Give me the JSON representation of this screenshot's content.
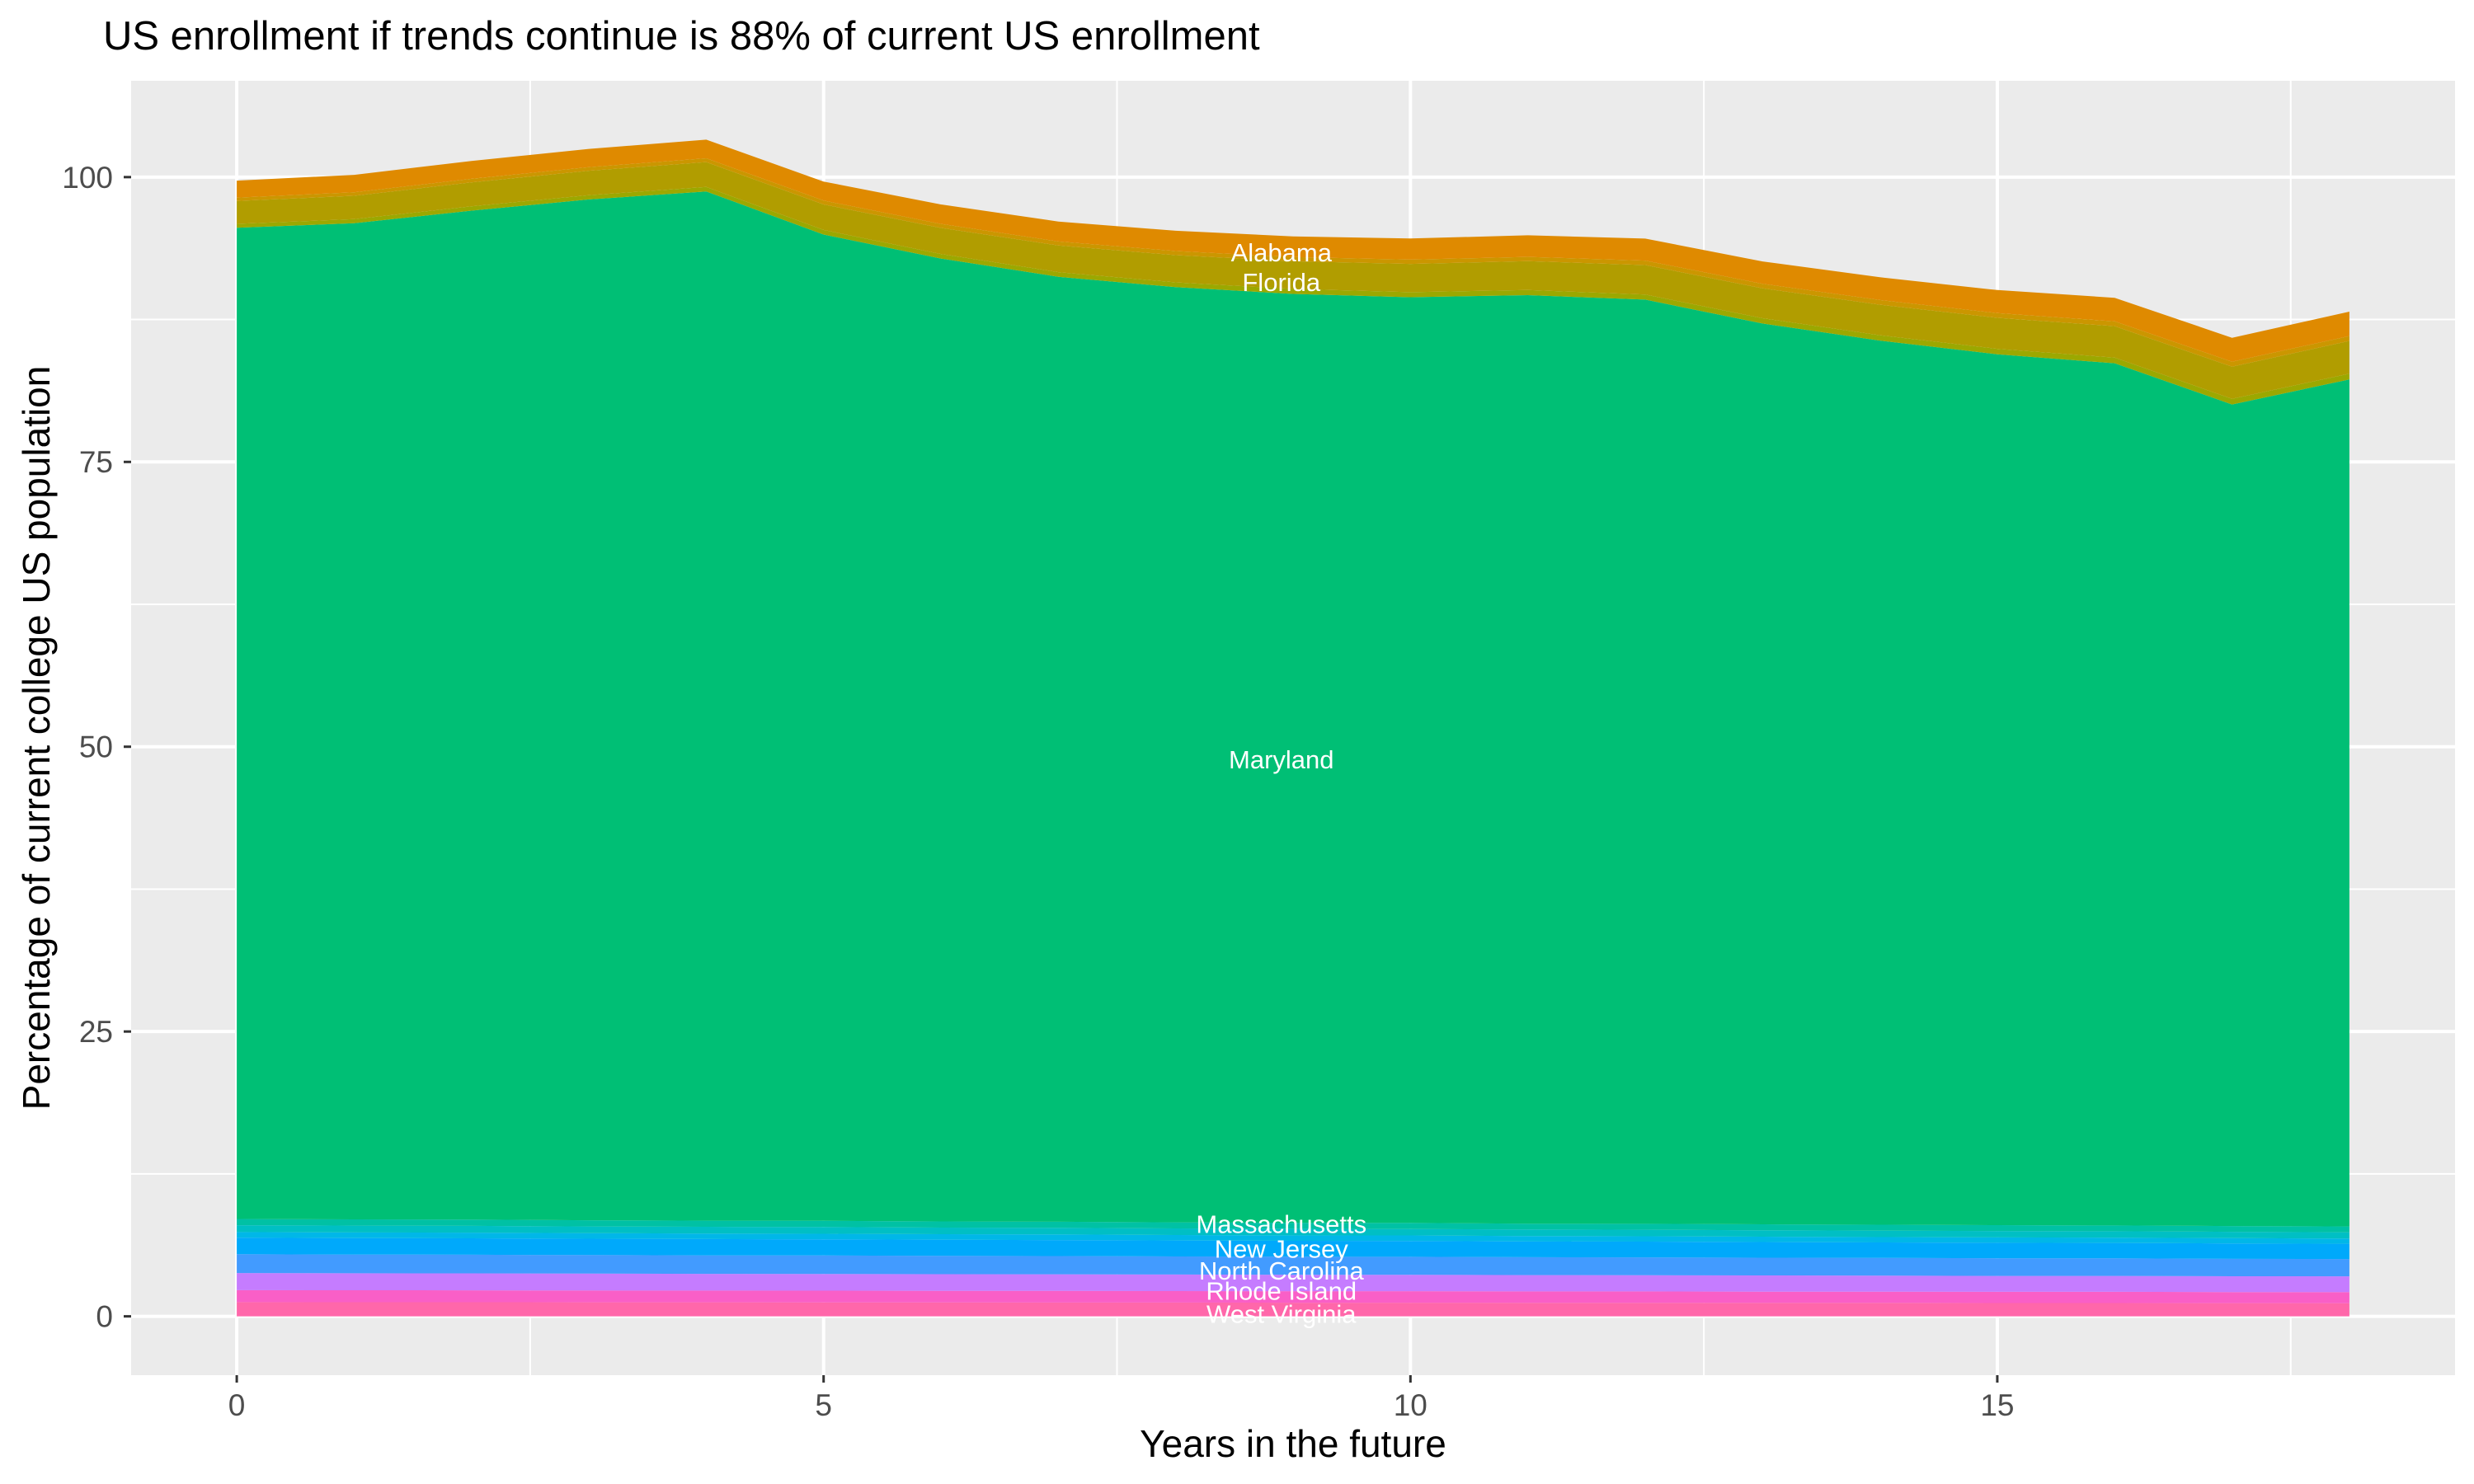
{
  "title": "US enrollment if trends continue is 88% of current US enrollment",
  "axes": {
    "x": {
      "title": "Years in the future",
      "ticks": [
        0,
        5,
        10,
        15
      ]
    },
    "y": {
      "title": "Percentage of current college US population",
      "ticks": [
        0,
        25,
        50,
        75,
        100
      ]
    }
  },
  "style": {
    "panel_background": "#EBEBEB",
    "gridline_color": "#FFFFFF",
    "tick_mark_color": "#333333",
    "tick_label_color": "#4D4D4D",
    "state_label_color": "#FFFFFF"
  },
  "chart_data": {
    "type": "area",
    "stacked": true,
    "title": "US enrollment if trends continue is 88% of current US enrollment",
    "xlabel": "Years in the future",
    "ylabel": "Percentage of current college US population",
    "legend": "none",
    "grid": true,
    "x_range_data": [
      0,
      18
    ],
    "y_tick_range": [
      0,
      100
    ],
    "x": [
      0,
      1,
      2,
      3,
      4,
      5,
      6,
      7,
      8,
      9,
      10,
      11,
      12,
      13,
      14,
      15,
      16,
      17,
      18
    ],
    "label_x": 8.9,
    "series": [
      {
        "name": "West Virginia",
        "label": "West Virginia",
        "label_y": 0.2,
        "color": "#FF67AA",
        "values": [
          1.25,
          1.24,
          1.24,
          1.23,
          1.23,
          1.22,
          1.22,
          1.21,
          1.21,
          1.2,
          1.2,
          1.19,
          1.19,
          1.18,
          1.18,
          1.17,
          1.17,
          1.16,
          1.15
        ]
      },
      {
        "name": "unlabeled-band-magenta",
        "label": null,
        "label_y": null,
        "color": "#F95FC7",
        "values": [
          1.05,
          1.05,
          1.04,
          1.04,
          1.03,
          1.03,
          1.02,
          1.02,
          1.01,
          1.01,
          1.01,
          1.0,
          1.0,
          0.99,
          0.99,
          0.98,
          0.98,
          0.97,
          0.97
        ]
      },
      {
        "name": "Rhode Island",
        "label": "Rhode Island",
        "label_y": 2.25,
        "color": "#C57CFF",
        "values": [
          1.5,
          1.49,
          1.49,
          1.48,
          1.47,
          1.47,
          1.46,
          1.46,
          1.45,
          1.44,
          1.44,
          1.43,
          1.42,
          1.42,
          1.41,
          1.4,
          1.4,
          1.39,
          1.39
        ]
      },
      {
        "name": "North Carolina",
        "label": "North Carolina",
        "label_y": 4.0,
        "color": "#429BFF",
        "values": [
          1.65,
          1.64,
          1.64,
          1.63,
          1.62,
          1.62,
          1.61,
          1.6,
          1.59,
          1.59,
          1.58,
          1.57,
          1.57,
          1.56,
          1.55,
          1.55,
          1.54,
          1.53,
          1.52
        ]
      },
      {
        "name": "New Jersey",
        "label": "New Jersey",
        "label_y": 5.95,
        "color": "#00A9FB",
        "values": [
          1.45,
          1.44,
          1.44,
          1.43,
          1.43,
          1.42,
          1.41,
          1.41,
          1.4,
          1.39,
          1.39,
          1.38,
          1.38,
          1.37,
          1.36,
          1.36,
          1.35,
          1.35,
          1.34
        ]
      },
      {
        "name": "unlabeled-band-cyan",
        "label": null,
        "label_y": null,
        "color": "#00B7E8",
        "values": [
          0.5,
          0.5,
          0.5,
          0.49,
          0.49,
          0.49,
          0.49,
          0.49,
          0.48,
          0.48,
          0.48,
          0.48,
          0.47,
          0.47,
          0.47,
          0.47,
          0.47,
          0.46,
          0.46
        ]
      },
      {
        "name": "Massachusetts",
        "label": "Massachusetts",
        "label_y": 8.1,
        "color": "#00BFC4",
        "values": [
          0.6,
          0.6,
          0.59,
          0.59,
          0.59,
          0.59,
          0.58,
          0.58,
          0.58,
          0.58,
          0.57,
          0.57,
          0.57,
          0.57,
          0.56,
          0.56,
          0.56,
          0.56,
          0.55
        ]
      },
      {
        "name": "unlabeled-band-teal",
        "label": null,
        "label_y": null,
        "color": "#00C1A4",
        "values": [
          0.55,
          0.55,
          0.55,
          0.54,
          0.54,
          0.54,
          0.54,
          0.53,
          0.53,
          0.53,
          0.53,
          0.52,
          0.52,
          0.52,
          0.52,
          0.52,
          0.51,
          0.51,
          0.51
        ]
      },
      {
        "name": "Maryland",
        "label": "Maryland",
        "label_y": 48.9,
        "color": "#00BF75",
        "values": [
          87.0,
          87.44,
          88.57,
          89.61,
          90.34,
          86.58,
          84.52,
          82.95,
          82.09,
          81.53,
          81.26,
          81.5,
          81.13,
          79.07,
          77.61,
          76.44,
          75.68,
          72.11,
          74.35
        ]
      },
      {
        "name": "unlabeled-band-yellowgreen",
        "label": null,
        "label_y": null,
        "color": "#9BA800",
        "values": [
          0.35,
          0.36,
          0.37,
          0.38,
          0.39,
          0.4,
          0.4,
          0.41,
          0.42,
          0.43,
          0.44,
          0.45,
          0.45,
          0.46,
          0.47,
          0.48,
          0.49,
          0.5,
          0.51
        ]
      },
      {
        "name": "Florida",
        "label": "Florida",
        "label_y": 90.8,
        "color": "#B19D00",
        "values": [
          2.0,
          2.05,
          2.1,
          2.14,
          2.19,
          2.24,
          2.29,
          2.34,
          2.39,
          2.43,
          2.48,
          2.53,
          2.58,
          2.63,
          2.68,
          2.72,
          2.77,
          2.82,
          2.87
        ]
      },
      {
        "name": "unlabeled-band-ochre",
        "label": null,
        "label_y": null,
        "color": "#CB9600",
        "values": [
          0.3,
          0.31,
          0.32,
          0.32,
          0.33,
          0.34,
          0.35,
          0.35,
          0.36,
          0.37,
          0.38,
          0.38,
          0.39,
          0.4,
          0.41,
          0.41,
          0.42,
          0.43,
          0.43
        ]
      },
      {
        "name": "Alabama",
        "label": "Alabama",
        "label_y": 93.4,
        "color": "#DF8A00",
        "values": [
          1.49,
          1.53,
          1.57,
          1.6,
          1.64,
          1.67,
          1.71,
          1.75,
          1.78,
          1.82,
          1.85,
          1.89,
          1.93,
          1.96,
          2.0,
          2.03,
          2.07,
          2.11,
          2.14
        ]
      }
    ]
  }
}
